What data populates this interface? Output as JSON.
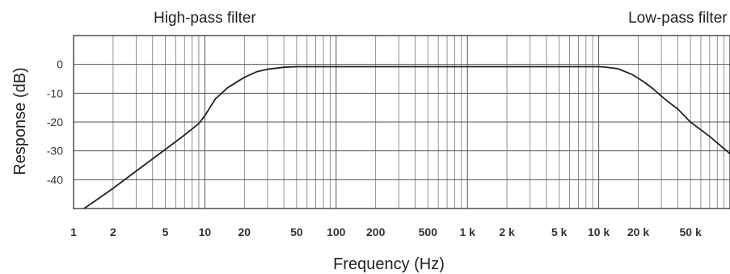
{
  "chart_data": {
    "type": "line",
    "title": "",
    "xlabel": "Frequency (Hz)",
    "ylabel": "Response (dB)",
    "xscale": "log",
    "xlim": [
      1,
      100000
    ],
    "ylim": [
      -50,
      10
    ],
    "grid": true,
    "x_ticks": [
      {
        "value": 1,
        "label": "1"
      },
      {
        "value": 2,
        "label": "2"
      },
      {
        "value": 5,
        "label": "5"
      },
      {
        "value": 10,
        "label": "10"
      },
      {
        "value": 20,
        "label": "20"
      },
      {
        "value": 50,
        "label": "50"
      },
      {
        "value": 100,
        "label": "100"
      },
      {
        "value": 200,
        "label": "200"
      },
      {
        "value": 500,
        "label": "500"
      },
      {
        "value": 1000,
        "label": "1 k"
      },
      {
        "value": 2000,
        "label": "2 k"
      },
      {
        "value": 5000,
        "label": "5 k"
      },
      {
        "value": 10000,
        "label": "10 k"
      },
      {
        "value": 20000,
        "label": "20 k"
      },
      {
        "value": 50000,
        "label": "50 k"
      }
    ],
    "y_ticks": [
      {
        "value": 0,
        "label": "0"
      },
      {
        "value": -10,
        "label": "-10"
      },
      {
        "value": -20,
        "label": "-20"
      },
      {
        "value": -30,
        "label": "-30"
      },
      {
        "value": -40,
        "label": "-40"
      }
    ],
    "annotations": [
      {
        "text": "High-pass filter",
        "x": 10,
        "y": 15
      },
      {
        "text": "Low-pass filter",
        "x": 40000,
        "y": 15
      }
    ],
    "series": [
      {
        "color": "#222222",
        "x": [
          1.2,
          1.5,
          2,
          3,
          5,
          7,
          9,
          10,
          12,
          15,
          20,
          25,
          30,
          40,
          50,
          100,
          1000,
          5000,
          10000,
          11000,
          14000,
          18000,
          22000,
          26000,
          30000,
          35000,
          40000,
          50000,
          70000,
          100000
        ],
        "y": [
          -50,
          -47,
          -43,
          -37,
          -29.5,
          -24.5,
          -20.5,
          -17.8,
          -12,
          -8,
          -4.5,
          -2.5,
          -1.7,
          -1,
          -0.8,
          -0.8,
          -0.8,
          -0.8,
          -0.8,
          -0.9,
          -1.5,
          -3.5,
          -6,
          -8.5,
          -11,
          -13.5,
          -15.5,
          -20,
          -25,
          -31
        ]
      }
    ]
  }
}
